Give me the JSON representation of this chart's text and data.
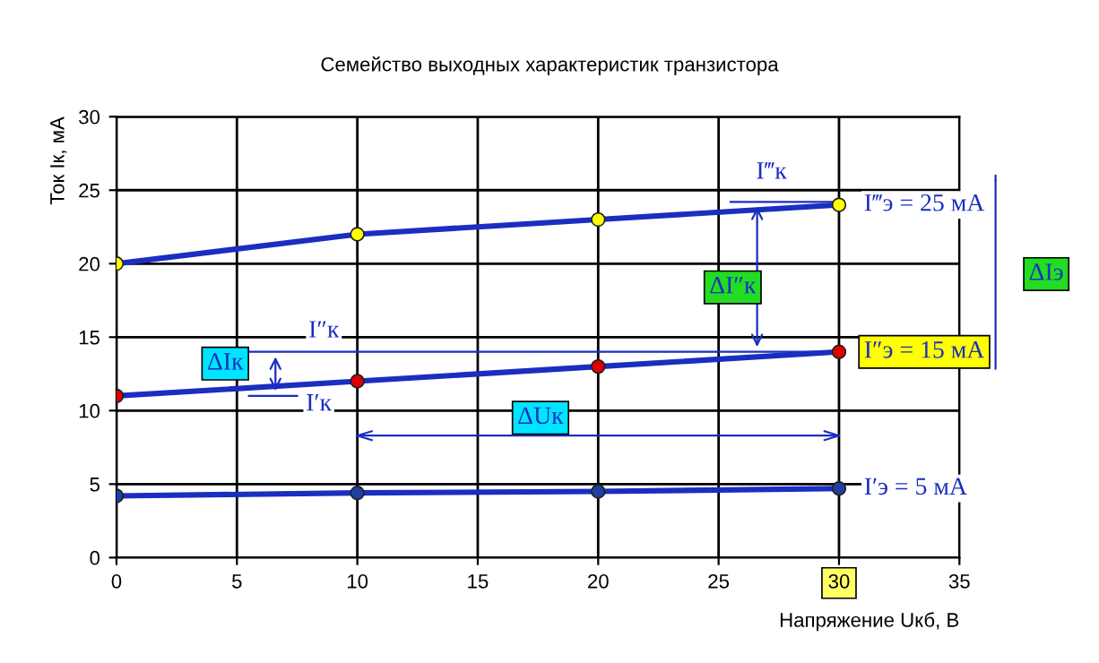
{
  "chart_data": {
    "type": "line",
    "title": "Семейство выходных характеристик транзистора",
    "xlabel": "Напряжение Uкб, В",
    "ylabel": "Ток Iк, мА",
    "x": [
      0,
      10,
      20,
      30
    ],
    "series": [
      {
        "name": "I‴э = 25 мА",
        "color": "#1a2ec0",
        "colors": [
          "#ffff00",
          "#ffff00",
          "#ffff00",
          "#ffff00"
        ],
        "values": [
          20,
          22,
          23,
          24
        ]
      },
      {
        "name": "I″э = 15 мА",
        "color": "#1a2ec0",
        "colors": [
          "#e00000",
          "#e00000",
          "#e00000",
          "#e00000"
        ],
        "values": [
          11,
          12,
          13,
          14
        ]
      },
      {
        "name": "I′э = 5 мА",
        "color": "#1a2ec0",
        "colors": [
          "#2040a0",
          "#2040a0",
          "#2040a0",
          "#2040a0"
        ],
        "values": [
          4.2,
          4.4,
          4.5,
          4.7
        ]
      },
      {
        "type": "line",
        "marker": "none",
        "color": "#1a2ec0",
        "x": [
          10,
          30
        ],
        "values": [
          8.3,
          8.3
        ]
      }
    ],
    "annotations": [
      "I‴к",
      "ΔI″к",
      "ΔIэ",
      "I″к",
      "ΔIк",
      "I′к",
      "ΔUк"
    ],
    "xlim": [
      0,
      35
    ],
    "xticks": [
      0,
      5,
      10,
      15,
      20,
      25,
      30,
      35
    ],
    "ylim": [
      0,
      30
    ],
    "yticks": [
      0,
      5,
      10,
      15,
      20,
      25,
      30
    ],
    "grid": true,
    "marker": "circle",
    "line_style": "solid"
  }
}
